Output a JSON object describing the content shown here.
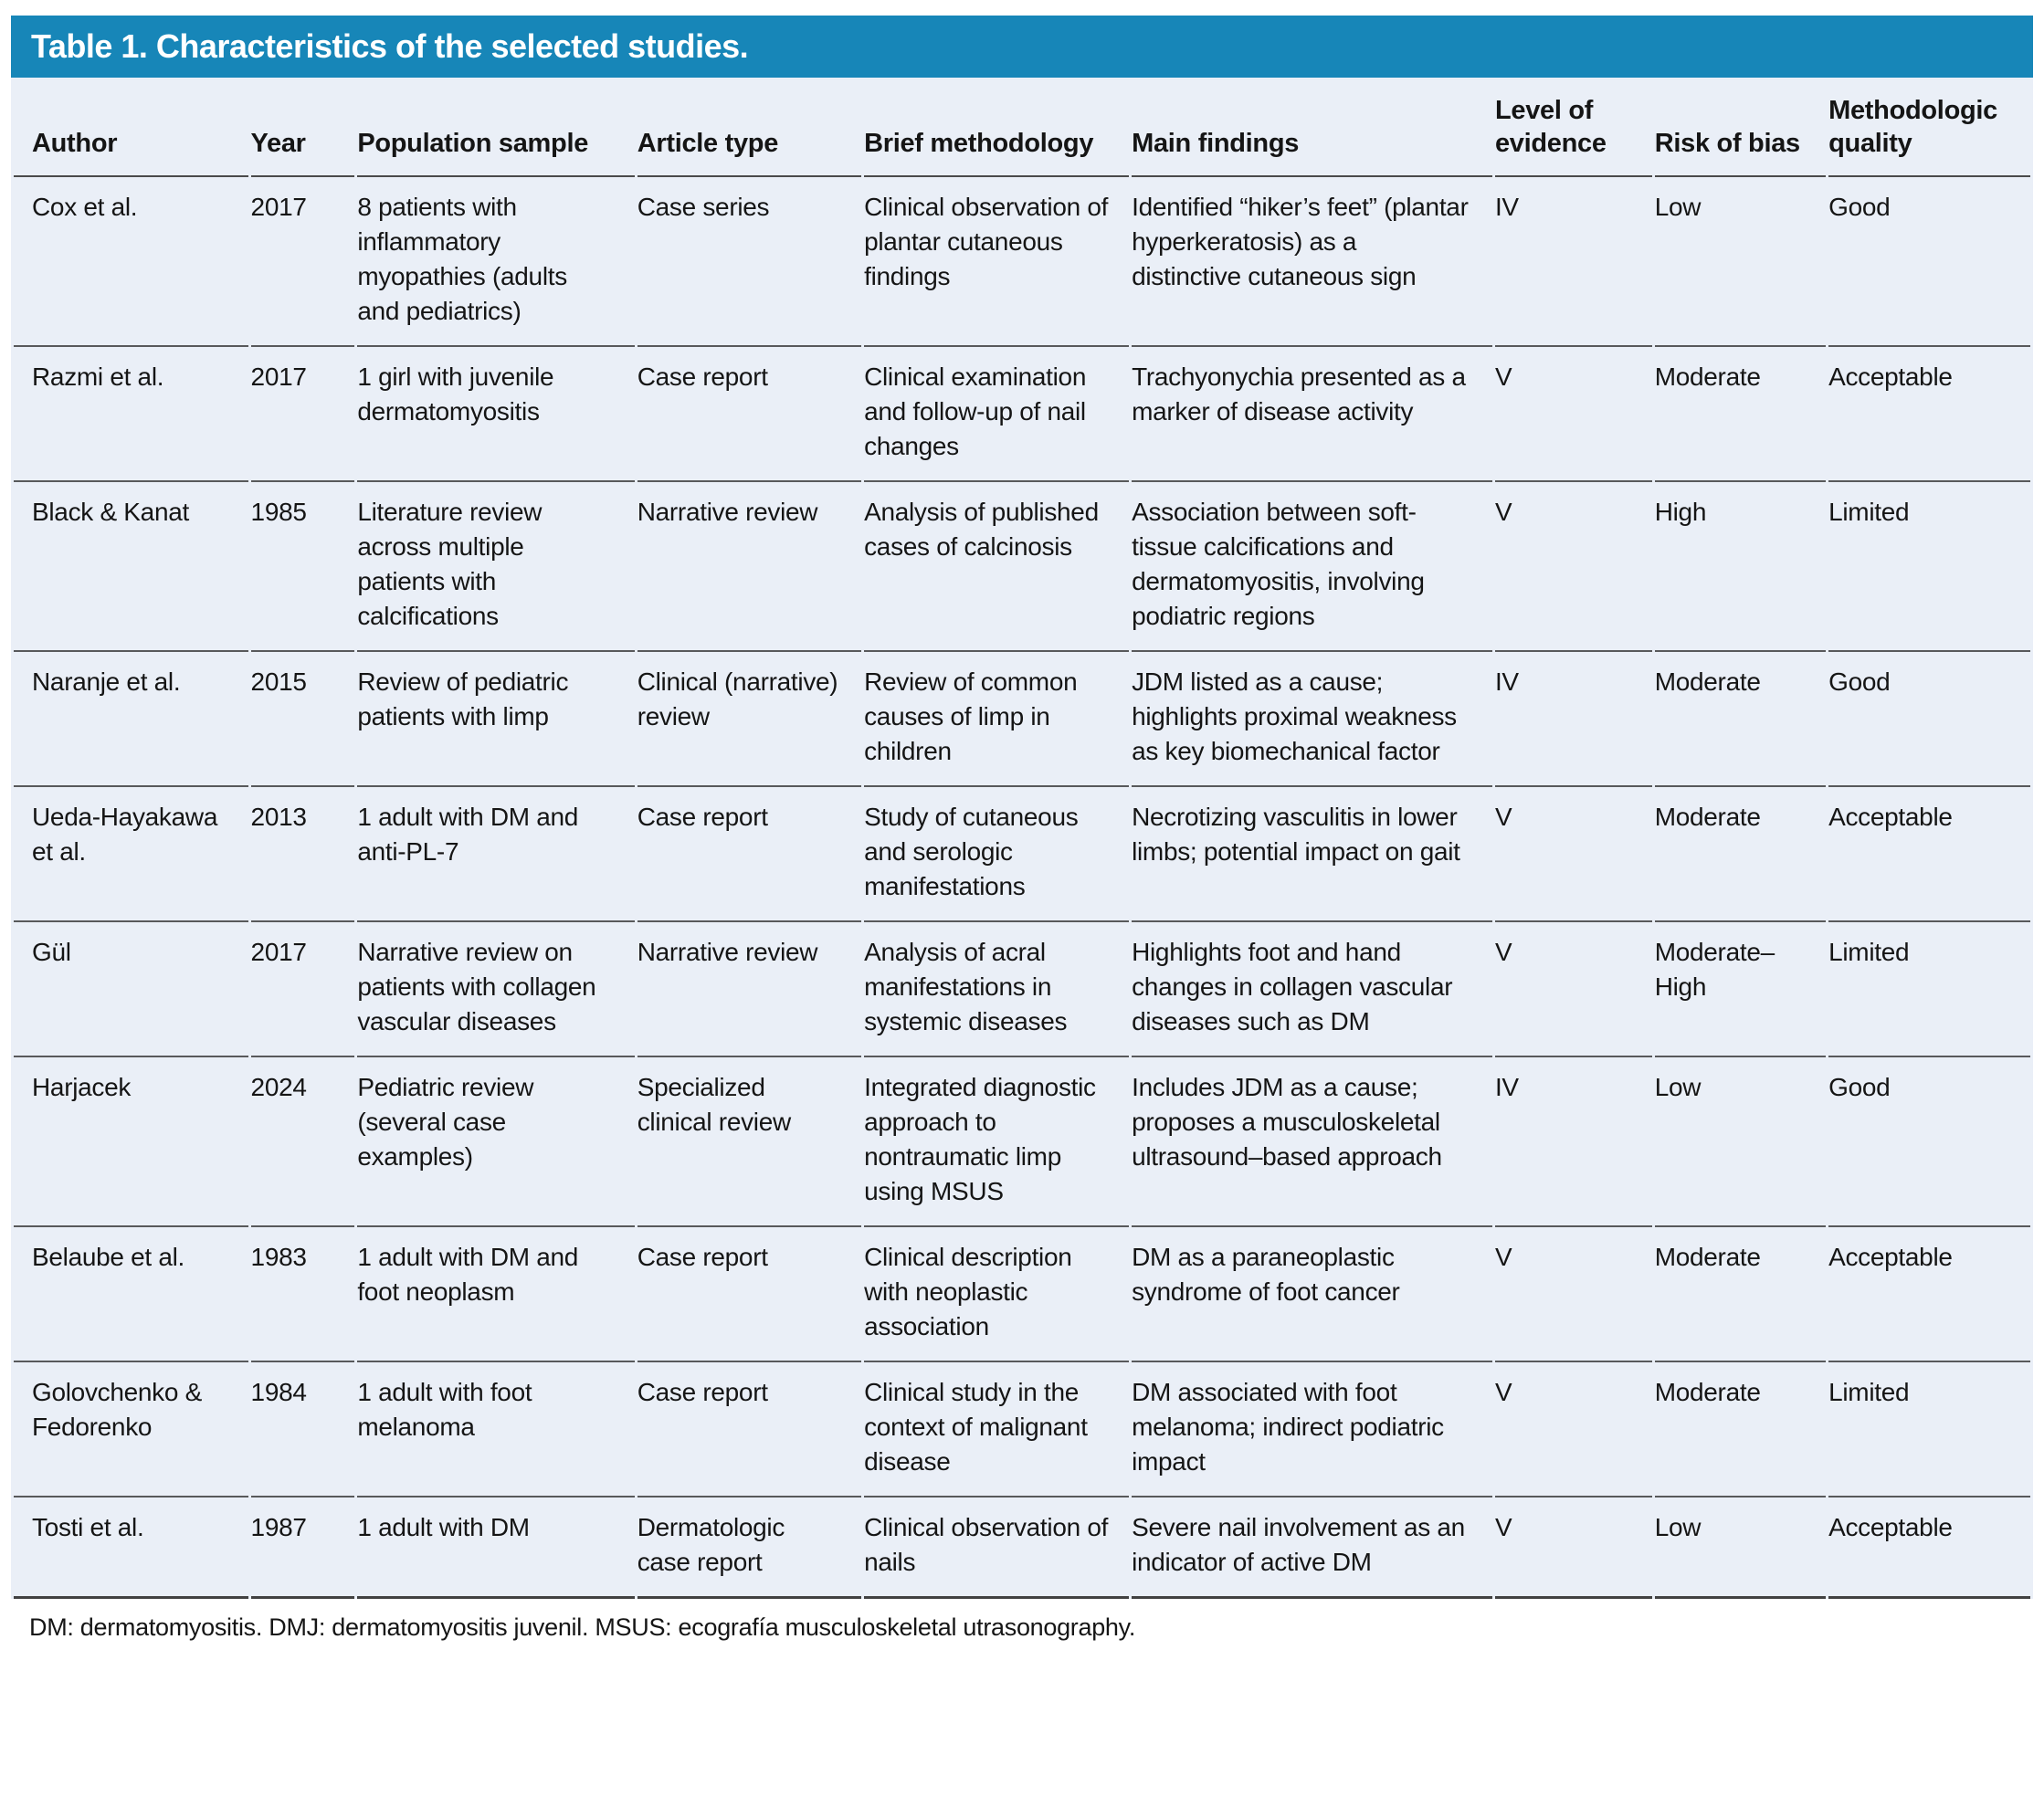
{
  "title": "Table 1. Characteristics of the selected studies.",
  "footnote": "DM: dermatomyositis. DMJ: dermatomyositis juvenil. MSUS: ecografía musculoskeletal utrasonography.",
  "colors": {
    "header_bar": "#1786b8",
    "table_bg": "#eaeff7",
    "row_divider": "#58595b",
    "text": "#151515"
  },
  "columns": [
    {
      "key": "author",
      "label": "Author"
    },
    {
      "key": "year",
      "label": "Year"
    },
    {
      "key": "population",
      "label": "Population sample"
    },
    {
      "key": "article_type",
      "label": "Article type"
    },
    {
      "key": "methodology",
      "label": "Brief methodology"
    },
    {
      "key": "findings",
      "label": "Main findings"
    },
    {
      "key": "evidence",
      "label": "Level of evidence"
    },
    {
      "key": "bias",
      "label": "Risk of bias"
    },
    {
      "key": "quality",
      "label": "Methodologic quality"
    }
  ],
  "rows": [
    {
      "author": "Cox et al.",
      "year": "2017",
      "population": "8 patients with inflammatory myopathies (adults and pediatrics)",
      "article_type": "Case series",
      "methodology": "Clinical observation of plantar cutaneous findings",
      "findings": "Identified “hiker’s feet” (plantar hyperkeratosis) as a distinctive cutaneous sign",
      "evidence": "IV",
      "bias": "Low",
      "quality": "Good"
    },
    {
      "author": "Razmi et al.",
      "year": "2017",
      "population": "1 girl with juvenile dermatomyositis",
      "article_type": "Case report",
      "methodology": "Clinical examination and follow-up of nail changes",
      "findings": "Trachyonychia presented as a marker of disease activity",
      "evidence": "V",
      "bias": "Moderate",
      "quality": "Acceptable"
    },
    {
      "author": "Black & Kanat",
      "year": "1985",
      "population": "Literature review across multiple patients with calcifications",
      "article_type": "Narrative review",
      "methodology": "Analysis of published cases of calcinosis",
      "findings": "Association between soft-tissue calcifications and dermatomyositis, involving podiatric regions",
      "evidence": "V",
      "bias": "High",
      "quality": "Limited"
    },
    {
      "author": "Naranje et al.",
      "year": "2015",
      "population": "Review of pediatric patients with limp",
      "article_type": "Clinical (narrative) review",
      "methodology": "Review of common causes of limp in children",
      "findings": "JDM listed as a cause; highlights proximal weakness as key biomechanical factor",
      "evidence": "IV",
      "bias": "Moderate",
      "quality": "Good"
    },
    {
      "author": "Ueda-Hayakawa et al.",
      "year": "2013",
      "population": "1 adult with DM and anti-PL-7",
      "article_type": "Case report",
      "methodology": "Study of cutaneous and serologic manifestations",
      "findings": "Necrotizing vasculitis in lower limbs; potential impact on gait",
      "evidence": "V",
      "bias": "Moderate",
      "quality": "Acceptable"
    },
    {
      "author": "Gül",
      "year": "2017",
      "population": "Narrative review on patients with collagen vascular diseases",
      "article_type": "Narrative review",
      "methodology": "Analysis of acral manifestations in systemic diseases",
      "findings": "Highlights foot and hand changes in collagen vascular diseases such as DM",
      "evidence": "V",
      "bias": "Moderate–High",
      "quality": "Limited"
    },
    {
      "author": "Harjacek",
      "year": "2024",
      "population": "Pediatric review (several case examples)",
      "article_type": "Specialized clinical review",
      "methodology": "Integrated diagnostic approach to nontraumatic limp using MSUS",
      "findings": "Includes JDM as a cause; proposes a musculoskeletal ultrasound–based approach",
      "evidence": "IV",
      "bias": "Low",
      "quality": "Good"
    },
    {
      "author": "Belaube et al.",
      "year": "1983",
      "population": "1 adult with DM and foot neoplasm",
      "article_type": "Case report",
      "methodology": "Clinical description with neoplastic association",
      "findings": "DM as a paraneoplastic syndrome of foot cancer",
      "evidence": "V",
      "bias": "Moderate",
      "quality": "Acceptable"
    },
    {
      "author": "Golovchenko & Fedorenko",
      "year": "1984",
      "population": "1 adult with foot melanoma",
      "article_type": "Case report",
      "methodology": "Clinical study in the context of malignant disease",
      "findings": "DM associated with foot melanoma; indirect podiatric impact",
      "evidence": "V",
      "bias": "Moderate",
      "quality": "Limited"
    },
    {
      "author": "Tosti et al.",
      "year": "1987",
      "population": "1 adult with DM",
      "article_type": "Dermatologic case report",
      "methodology": "Clinical observation of nails",
      "findings": "Severe nail involvement as an indicator of active DM",
      "evidence": "V",
      "bias": "Low",
      "quality": "Acceptable"
    }
  ]
}
